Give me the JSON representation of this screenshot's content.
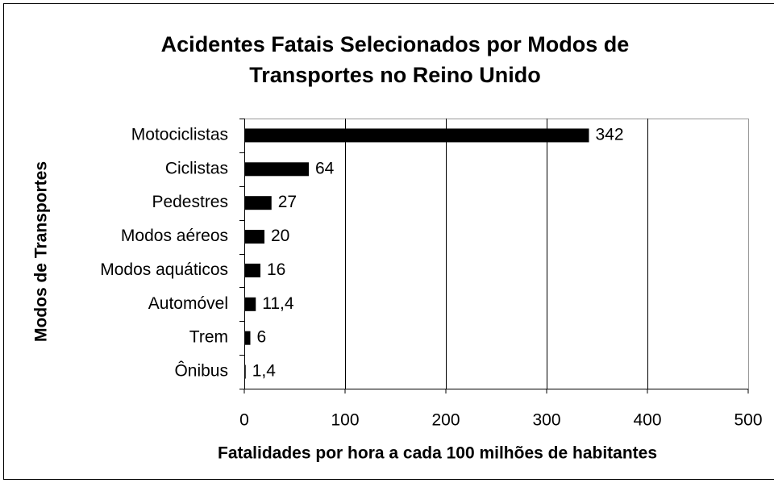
{
  "chart_data": {
    "type": "hbar",
    "title": "Acidentes Fatais Selecionados por Modos de Transportes no Reino Unido",
    "x_label": "Fatalidades por hora a cada 100 milhões de habitantes",
    "y_label": "Modos de Transportes",
    "categories": [
      "Motociclistas",
      "Ciclistas",
      "Pedestres",
      "Modos aéreos",
      "Modos aquáticos",
      "Automóvel",
      "Trem",
      "Ônibus"
    ],
    "values": [
      342,
      64,
      27,
      20,
      16,
      11.4,
      6,
      1.4
    ],
    "value_labels": [
      "342",
      "64",
      "27",
      "20",
      "16",
      "11,4",
      "6",
      "1,4"
    ],
    "color": "#000000",
    "xlim": [
      0,
      500
    ],
    "xticks": [
      0,
      100,
      200,
      300,
      400,
      500
    ],
    "grid": true
  }
}
